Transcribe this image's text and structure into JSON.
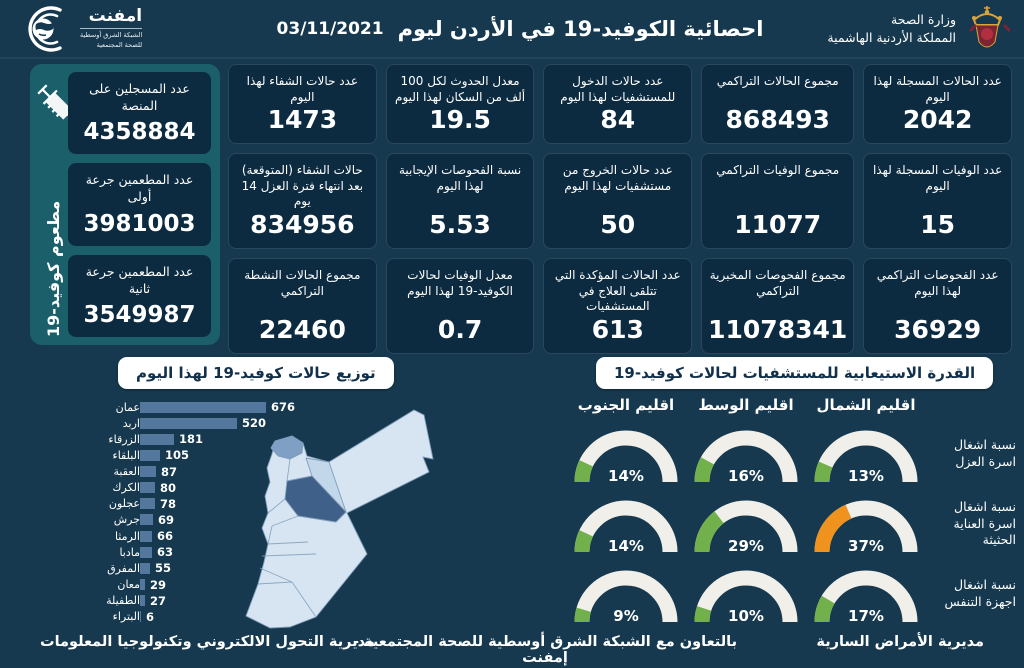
{
  "header": {
    "title": "احصائية الكوفيد-19 في الأردن ليوم",
    "date": "03/11/2021",
    "ministry_line1": "وزارة الصحة",
    "ministry_line2": "المملكة الأردنية الهاشمية",
    "emphnet_name": "امفنت",
    "emphnet_sub1": "الشبكة الشرق أوسطية",
    "emphnet_sub2": "للصحة المجتمعية"
  },
  "vaccine_panel": {
    "side_label": "مطعوم كوفيد-19",
    "cards": [
      {
        "label": "عدد المسجلين على المنصة",
        "value": "4358884"
      },
      {
        "label": "عدد المطعمين جرعة أولى",
        "value": "3981003"
      },
      {
        "label": "عدد المطعمين جرعة ثانية",
        "value": "3549987"
      }
    ]
  },
  "stat_cards": [
    {
      "label": "عدد الحالات المسجلة لهذا اليوم",
      "value": "2042"
    },
    {
      "label": "مجموع الحالات التراكمي",
      "value": "868493"
    },
    {
      "label": "عدد حالات الدخول للمستشفيات لهذا اليوم",
      "value": "84"
    },
    {
      "label": "معدل الحدوث لكل 100 ألف من السكان لهذا اليوم",
      "value": "19.5"
    },
    {
      "label": "عدد حالات الشفاء لهذا اليوم",
      "value": "1473"
    },
    {
      "label": "عدد الوفيات المسجلة لهذا اليوم",
      "value": "15"
    },
    {
      "label": "مجموع الوفيات التراكمي",
      "value": "11077"
    },
    {
      "label": "عدد حالات الخروج من مستشفيات لهذا اليوم",
      "value": "50"
    },
    {
      "label": "نسبة الفحوصات الإيجابية لهذا اليوم",
      "value": "5.53"
    },
    {
      "label": "حالات الشفاء (المتوقعة) بعد انتهاء فترة العزل 14 يوم",
      "value": "834956"
    },
    {
      "label": "عدد الفحوصات التراكمي لهذا اليوم",
      "value": "36929"
    },
    {
      "label": "مجموع الفحوصات المخبرية التراكمي",
      "value": "11078341"
    },
    {
      "label": "عدد الحالات المؤكدة التي تتلقى العلاج في المستشفيات",
      "value": "613"
    },
    {
      "label": "معدل الوفيات لحالات الكوفيد-19 لهذا اليوم",
      "value": "0.7"
    },
    {
      "label": "مجموع الحالات النشطة التراكمي",
      "value": "22460"
    }
  ],
  "footer": {
    "left": "مديرية التحول الالكتروني وتكنولوجيا المعلومات",
    "center": "بالتعاون مع الشبكة الشرق أوسطية للصحة المجتمعية - إمفنت",
    "right": "مديرية الأمراض السارية"
  },
  "colors": {
    "background": "#16394F",
    "card": "#0D2B40",
    "teal_panel": "#1A5F6A",
    "bar": "#54779D",
    "gauge_track": "#F1EFE9",
    "gauge_green": "#72B04C",
    "gauge_orange": "#F0921E",
    "map_default": "#D7E5F3",
    "map_amman": "#3E6089",
    "map_irbid": "#7FA0C4",
    "map_zarqa": "#C3D7EA"
  },
  "chart_data": [
    {
      "type": "bar",
      "title": "توزيع حالات كوفيد-19 لهذا اليوم",
      "orientation": "horizontal",
      "categories": [
        "عمان",
        "اربد",
        "الزرقاء",
        "البلقاء",
        "العقبة",
        "الكرك",
        "عجلون",
        "جرش",
        "الرمثا",
        "مادبا",
        "المفرق",
        "معان",
        "الطفيلة",
        "البتراء"
      ],
      "values": [
        676,
        520,
        181,
        105,
        87,
        80,
        78,
        69,
        66,
        63,
        55,
        29,
        27,
        6
      ],
      "xlim": [
        0,
        700
      ],
      "bar_color": "#54779D",
      "value_labels": true
    },
    {
      "type": "gauge-grid",
      "title": "القدرة الاستيعابية للمستشفيات لحالات كوفيد-19",
      "unit": "%",
      "columns": [
        "اقليم الجنوب",
        "اقليم الوسط",
        "اقليم الشمال"
      ],
      "rows": [
        "نسبة اشغال اسرة العزل",
        "نسبة اشغال اسرة العناية الحثيثة",
        "نسبة اشغال اجهزة التنفس"
      ],
      "values": [
        [
          14,
          16,
          13
        ],
        [
          14,
          29,
          37
        ],
        [
          9,
          10,
          17
        ]
      ],
      "colors": [
        [
          "green",
          "green",
          "green"
        ],
        [
          "green",
          "green",
          "orange"
        ],
        [
          "green",
          "green",
          "green"
        ]
      ],
      "range": [
        0,
        100
      ]
    }
  ]
}
